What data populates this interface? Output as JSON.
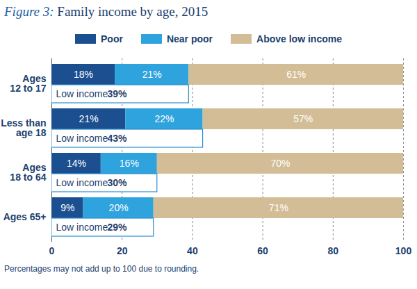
{
  "chart_data": {
    "type": "bar",
    "orientation": "horizontal",
    "stacked": true,
    "data_labels": true,
    "title": "Figure 3: Family income by age, 2015",
    "caption": "Percentages may not add up to 100 due to rounding.",
    "legend": "top",
    "grid": true,
    "categories": [
      "Ages\n12 to 17",
      "Less than\nage 18",
      "Ages\n18 to 64",
      "Ages 65+"
    ],
    "series": [
      {
        "name": "Poor",
        "color": "#1c4f8f",
        "values": [
          18,
          21,
          14,
          9
        ],
        "value_labels": [
          "18%",
          "21%",
          "14%",
          "9%"
        ]
      },
      {
        "name": "Near poor",
        "color": "#2ea3de",
        "values": [
          21,
          22,
          16,
          20
        ],
        "value_labels": [
          "21%",
          "22%",
          "16%",
          "20%"
        ]
      },
      {
        "name": "Above low income",
        "color": "#d3bd96",
        "values": [
          61,
          57,
          70,
          71
        ],
        "value_labels": [
          "61%",
          "57%",
          "70%",
          "71%"
        ]
      }
    ],
    "low_income": {
      "label": "Low income",
      "color": "#2a8fd0",
      "values": [
        39,
        43,
        30,
        29
      ],
      "value_labels": [
        "39%",
        "43%",
        "30%",
        "29%"
      ]
    },
    "xlim": [
      0,
      100
    ],
    "xticks": [
      0,
      20,
      40,
      60,
      80,
      100
    ]
  }
}
